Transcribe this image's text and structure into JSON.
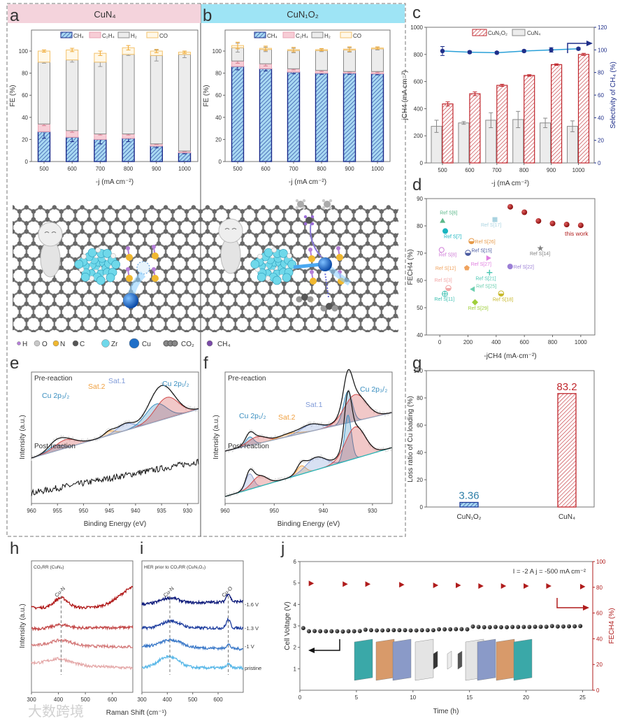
{
  "panels": {
    "a": "a",
    "b": "b",
    "c": "c",
    "d": "d",
    "e": "e",
    "f": "f",
    "g": "g",
    "h": "h",
    "i": "i",
    "j": "j"
  },
  "illustration": {
    "legend": [
      {
        "label": "H",
        "color": "#b57fd8"
      },
      {
        "label": "O",
        "color": "#c8c8c8"
      },
      {
        "label": "N",
        "color": "#f0b830"
      },
      {
        "label": "C",
        "color": "#555555"
      },
      {
        "label": "Zr",
        "color": "#6fd8ea"
      },
      {
        "label": "Cu",
        "color": "#1f6fc8"
      },
      {
        "label": "CO₂",
        "color": "#8a8a8a"
      },
      {
        "label": "CH₄",
        "color": "#7a4aa8"
      }
    ]
  },
  "watermark": "大数跨境",
  "chart_data": [
    {
      "panel": "a",
      "type": "bar",
      "stacked": true,
      "title": "CuN₄",
      "categories": [
        "500",
        "600",
        "700",
        "800",
        "900",
        "1000"
      ],
      "series": [
        {
          "name": "CH₄",
          "values": [
            27,
            22,
            20,
            21,
            14,
            8
          ],
          "errors": [
            6,
            4,
            4,
            3,
            1.5,
            1
          ],
          "color": "#1a2a8a"
        },
        {
          "name": "C₂H₄",
          "values": [
            7,
            6,
            5,
            4,
            2,
            1.5
          ],
          "errors": [
            1.5,
            1.5,
            1,
            1,
            0.5,
            0.5
          ],
          "color": "#f4b8c4"
        },
        {
          "name": "H₂",
          "values": [
            56,
            64,
            65,
            72,
            80,
            87.5
          ],
          "errors": [
            1,
            2,
            4,
            1,
            5,
            3
          ],
          "color": "#9a9a9a"
        },
        {
          "name": "CO",
          "values": [
            10,
            9,
            8,
            6,
            4,
            2
          ],
          "errors": [
            1,
            1.5,
            2,
            2,
            1.5,
            1
          ],
          "color": "#f3c26b"
        }
      ],
      "xlabel": "-j (mA cm⁻²)",
      "ylabel": "FE (%)",
      "yticks": [
        "0",
        "20",
        "40",
        "60",
        "80",
        "100"
      ],
      "ylim": [
        0,
        119
      ]
    },
    {
      "panel": "b",
      "type": "bar",
      "stacked": true,
      "title": "CuN₁O₂",
      "categories": [
        "500",
        "600",
        "700",
        "800",
        "900",
        "1000"
      ],
      "series": [
        {
          "name": "CH₄",
          "values": [
            86,
            84,
            81,
            80,
            80,
            79.5
          ],
          "errors": [
            3,
            2,
            1.5,
            1,
            1,
            1
          ],
          "color": "#1a2a8a"
        },
        {
          "name": "C₂H₄",
          "values": [
            5,
            4.5,
            3,
            2.5,
            1.5,
            2
          ],
          "errors": [
            2,
            2,
            1,
            1,
            0.5,
            1
          ],
          "color": "#f4b8c4"
        },
        {
          "name": "H₂",
          "values": [
            12,
            13,
            16.5,
            18,
            19.5,
            20.5
          ],
          "errors": [
            4,
            2,
            2,
            1,
            2,
            1
          ],
          "color": "#9a9a9a"
        },
        {
          "name": "CO",
          "values": [
            2,
            1,
            0.8,
            0.8,
            0.8,
            0.8
          ],
          "errors": [
            3,
            2,
            2,
            1,
            2,
            1
          ],
          "color": "#f3c26b"
        }
      ],
      "xlabel": "-j (mA cm⁻²)",
      "ylabel": "FE (%)",
      "yticks": [
        "0",
        "20",
        "40",
        "60",
        "80",
        "100"
      ],
      "ylim": [
        0,
        119
      ]
    },
    {
      "panel": "c",
      "type": "bar",
      "categories": [
        "500",
        "600",
        "700",
        "800",
        "900",
        "1000"
      ],
      "series": [
        {
          "name": "CuN₁O₂",
          "values": [
            435,
            510,
            572,
            645,
            725,
            800
          ],
          "errors": [
            15,
            14,
            8,
            6,
            6,
            8
          ],
          "color": "#c0272d"
        },
        {
          "name": "CuN₄",
          "values": [
            270,
            295,
            315,
            320,
            295,
            270
          ],
          "errors": [
            45,
            10,
            55,
            60,
            35,
            40
          ],
          "color": "#9a9a9a"
        }
      ],
      "line": {
        "name": "Selectivity of CH₄",
        "values": [
          99,
          98,
          97.5,
          99,
          100,
          101
        ],
        "errors": [
          4,
          1,
          1,
          1,
          2,
          1
        ],
        "color": "#1f2f8a"
      },
      "xlabel": "-j (mA cm⁻²)",
      "ylabel": "jCH4 (mA cm⁻²)",
      "y2label": "Selectivity of CH₄ (%)",
      "yticks": [
        "0",
        "200",
        "400",
        "600",
        "800",
        "1000"
      ],
      "ylim": [
        0,
        1000
      ],
      "y2ticks": [
        "0",
        "20",
        "40",
        "60",
        "80",
        "100",
        "120"
      ],
      "y2lim": [
        0,
        120
      ]
    },
    {
      "panel": "d",
      "type": "scatter",
      "xlabel": "-jCH4 (mA·cm⁻²)",
      "ylabel": "FECH4 (%)",
      "xticks": [
        "0",
        "200",
        "400",
        "600",
        "800",
        "1000"
      ],
      "yticks": [
        "40",
        "50",
        "60",
        "70",
        "80",
        "90"
      ],
      "xlim": [
        -95,
        1100
      ],
      "ylim": [
        40,
        90
      ],
      "points": [
        {
          "label": "Ref S[6]",
          "x": 20,
          "y": 81.9,
          "color": "#5cb88a",
          "marker": "triangle"
        },
        {
          "label": "Ref S[7]",
          "x": 39,
          "y": 78.1,
          "color": "#19b5c0",
          "marker": "circle"
        },
        {
          "label": "Ref S[8]",
          "x": 13,
          "y": 71.2,
          "color": "#d07fd8",
          "marker": "open-circle"
        },
        {
          "label": "Ref S[12]",
          "x": 192,
          "y": 64.6,
          "color": "#f0a35e",
          "marker": "pentagon"
        },
        {
          "label": "Ref S[3]",
          "x": 61,
          "y": 57.2,
          "color": "#f2a6a6",
          "marker": "half-circle"
        },
        {
          "label": "Ref S[11]",
          "x": 36,
          "y": 55.1,
          "color": "#3cbfb0",
          "marker": "crossed-circle"
        },
        {
          "label": "Ref S[25]",
          "x": 233,
          "y": 56.8,
          "color": "#6ccfb0",
          "marker": "left-triangle"
        },
        {
          "label": "Ref S[29]",
          "x": 250,
          "y": 52,
          "color": "#9fcf3a",
          "marker": "diamond"
        },
        {
          "label": "Ref S[21]",
          "x": 353,
          "y": 62.9,
          "color": "#4fc8b4",
          "marker": "plus"
        },
        {
          "label": "Ref S[18]",
          "x": 435,
          "y": 55.2,
          "color": "#c7b82a",
          "marker": "half-circle"
        },
        {
          "label": "Ref S[27]",
          "x": 345,
          "y": 68.2,
          "color": "#e07ee0",
          "marker": "right-triangle"
        },
        {
          "label": "Ref S[15]",
          "x": 200,
          "y": 70.1,
          "color": "#4a5aa0",
          "marker": "half-circle"
        },
        {
          "label": "Ref S[26]",
          "x": 225,
          "y": 74.4,
          "color": "#e69a4a",
          "marker": "half-circle"
        },
        {
          "label": "Ref S[17]",
          "x": 391,
          "y": 82.3,
          "color": "#a9d3e0",
          "marker": "square"
        },
        {
          "label": "Ref S[22]",
          "x": 499,
          "y": 65.1,
          "color": "#9b7fd6",
          "marker": "circle"
        },
        {
          "label": "Ref S[14]",
          "x": 713,
          "y": 71.8,
          "color": "#808080",
          "marker": "star"
        }
      ],
      "this_work": {
        "label": "this work",
        "x": [
          500,
          600,
          700,
          800,
          900,
          1000
        ],
        "y": [
          87,
          85,
          81.8,
          80.9,
          80.5,
          80.2
        ],
        "color": "#b01c1c"
      }
    },
    {
      "panel": "e",
      "type": "line",
      "xlabel": "Binding Energy (eV)",
      "ylabel": "Intensity (a.u.)",
      "xticks": [
        "960",
        "955",
        "950",
        "945",
        "940",
        "935",
        "930"
      ],
      "xlim": [
        960,
        927.9
      ],
      "traces": [
        {
          "name": "Pre-reaction",
          "baseline": [
            0,
            70
          ],
          "components": [
            {
              "c": 955.5,
              "h": 8,
              "w": 1.4,
              "color": "#3b8fc0"
            },
            {
              "c": 953.5,
              "h": 12,
              "w": 2,
              "color": "#d04848"
            },
            {
              "c": 945,
              "h": 6,
              "w": 1,
              "color": "#f0a040"
            },
            {
              "c": 942,
              "h": 10,
              "w": 1.5,
              "color": "#7f9ad8"
            },
            {
              "c": 936,
              "h": 25,
              "w": 2,
              "color": "#3b8fc0"
            },
            {
              "c": 934,
              "h": 30,
              "w": 2.2,
              "color": "#d04848"
            }
          ]
        },
        {
          "name": "Post-reaction",
          "baseline": [
            0,
            45
          ],
          "components": []
        }
      ],
      "annotations": [
        "Cu 2p₃/₂",
        "Sat.2",
        "Sat.1",
        "Cu 2p₁/₂"
      ]
    },
    {
      "panel": "f",
      "type": "line",
      "xlabel": "Binding Energy (eV)",
      "ylabel": "Intensity (a.u.)",
      "xticks": [
        "960",
        "950",
        "940",
        "930"
      ],
      "xlim": [
        960,
        926
      ],
      "traces": [
        {
          "name": "Pre-reaction",
          "baseline": [
            0,
            55
          ],
          "components": [
            {
              "c": 955,
              "h": 12,
              "w": 0.8,
              "color": "#3b8fc0"
            },
            {
              "c": 953.5,
              "h": 10,
              "w": 1.8,
              "color": "#d04848"
            },
            {
              "c": 947,
              "h": 4,
              "w": 2,
              "color": "#f0a040"
            },
            {
              "c": 942.5,
              "h": 10,
              "w": 2,
              "color": "#7f9ad8"
            },
            {
              "c": 935,
              "h": 45,
              "w": 0.9,
              "color": "#3b8fc0"
            },
            {
              "c": 933.5,
              "h": 38,
              "w": 2.2,
              "color": "#d04848"
            }
          ]
        },
        {
          "name": "Post-reaction",
          "baseline": [
            0,
            70
          ],
          "components": [
            {
              "c": 955,
              "h": 22,
              "w": 0.8,
              "color": "#8fa0d0"
            },
            {
              "c": 953,
              "h": 15,
              "w": 1.5,
              "color": "#d04848"
            },
            {
              "c": 944.5,
              "h": 12,
              "w": 0.9,
              "color": "#f0a040"
            },
            {
              "c": 941.5,
              "h": 18,
              "w": 2,
              "color": "#7f9ad8"
            },
            {
              "c": 935,
              "h": 65,
              "w": 0.7,
              "color": "#3b8fc0"
            },
            {
              "c": 933.5,
              "h": 45,
              "w": 2,
              "color": "#d04848"
            }
          ]
        }
      ],
      "annotations": [
        "Cu 2p₁/₂",
        "Sat.2",
        "Sat.1",
        "Cu 2p₃/₂"
      ]
    },
    {
      "panel": "g",
      "type": "bar",
      "categories": [
        "CuN₁O₂",
        "CuN₄"
      ],
      "values": [
        3.36,
        83.2
      ],
      "value_labels": [
        "3.36",
        "83.2"
      ],
      "colors": [
        "#2f7fa8",
        "#c0272d"
      ],
      "ylabel": "Loss ratio of Cu loading (%)",
      "yticks": [
        "0",
        "20",
        "40",
        "60",
        "80",
        "100"
      ],
      "ylim": [
        0,
        100
      ]
    },
    {
      "panel": "h",
      "type": "line",
      "title": "CO₂RR (CuN₄)",
      "xlabel": "Raman Shift (cm⁻¹)",
      "ylabel": "Intensity (a.u.)",
      "xticks": [
        "300",
        "400",
        "500",
        "600"
      ],
      "xlim": [
        300,
        676
      ],
      "annotations": [
        "Cu-N"
      ],
      "traces": [
        {
          "color": "#b01818",
          "peaks": [
            {
              "c": 410,
              "h": 14,
              "w": 25
            },
            {
              "c": 690,
              "h": 30,
              "w": 60
            }
          ],
          "slope": 0
        },
        {
          "color": "#c44a4a",
          "peaks": [
            {
              "c": 410,
              "h": 5,
              "w": 30
            }
          ],
          "slope": 0.005
        },
        {
          "color": "#d47a7a",
          "peaks": [
            {
              "c": 410,
              "h": 8,
              "w": 40
            }
          ],
          "slope": -0.005
        },
        {
          "color": "#e4a8a8",
          "peaks": [
            {
              "c": 405,
              "h": 8,
              "w": 40
            }
          ],
          "slope": -0.02
        }
      ]
    },
    {
      "panel": "i",
      "type": "line",
      "title": "HER prior to CO₂RR (CuN₁O₂)",
      "xlabel": "Raman Shift (cm⁻¹)",
      "xticks": [
        "300",
        "400",
        "500",
        "600"
      ],
      "xlim": [
        300,
        699
      ],
      "annotations": [
        "Cu-N",
        "Cu-O"
      ],
      "traces": [
        {
          "label": "-1.6 V",
          "color": "#0d1a7a",
          "peaks": [
            {
              "c": 410,
              "h": 8,
              "w": 35
            },
            {
              "c": 640,
              "h": 12,
              "w": 8
            }
          ],
          "slope": 0.01
        },
        {
          "label": "-1.3 V",
          "color": "#2140a0",
          "peaks": [
            {
              "c": 415,
              "h": 10,
              "w": 35
            },
            {
              "c": 640,
              "h": 12,
              "w": 8
            }
          ],
          "slope": 0
        },
        {
          "label": "-1 V",
          "color": "#3a78c8",
          "peaks": [
            {
              "c": 415,
              "h": 10,
              "w": 40
            },
            {
              "c": 640,
              "h": 6,
              "w": 8
            }
          ],
          "slope": -0.01
        },
        {
          "label": "pristine",
          "color": "#5ab8e8",
          "peaks": [
            {
              "c": 405,
              "h": 16,
              "w": 40
            },
            {
              "c": 640,
              "h": 5,
              "w": 8
            }
          ],
          "slope": 0
        }
      ]
    },
    {
      "panel": "j",
      "type": "scatter",
      "xlabel": "Time (h)",
      "ylabel": "Cell Voltage (V)",
      "y2label": "FECH4 (%)",
      "xticks": [
        "0",
        "5",
        "10",
        "15",
        "20",
        "25"
      ],
      "xlim": [
        0,
        25.9
      ],
      "yticks": [
        "1",
        "2",
        "3",
        "4",
        "5",
        "6"
      ],
      "ylim": [
        0,
        6
      ],
      "y2ticks": [
        "0",
        "20",
        "40",
        "60",
        "80",
        "100"
      ],
      "y2lim": [
        0,
        100
      ],
      "annotation": "I = -2 A   j = -500 mA cm⁻²",
      "voltage": {
        "time": [
          0.3,
          0.8,
          1.3,
          1.8,
          2.3,
          2.8,
          3.3,
          3.8,
          4.3,
          4.8,
          5.3,
          5.8,
          6.3,
          6.8,
          7.3,
          7.8,
          8.3,
          8.8,
          9.3,
          9.8,
          10.3,
          10.8,
          11.3,
          11.8,
          12.3,
          12.8,
          13.3,
          13.8,
          14.3,
          14.8,
          15.3,
          15.8,
          16.3,
          16.8,
          17.3,
          17.8,
          18.3,
          18.8,
          19.3,
          19.8,
          20.3,
          20.8,
          21.3,
          21.8,
          22.3,
          22.8,
          23.3,
          23.8,
          24.3,
          24.8
        ],
        "values": [
          2.9,
          2.75,
          2.76,
          2.75,
          2.75,
          2.75,
          2.75,
          2.74,
          2.75,
          2.75,
          2.76,
          2.82,
          2.8,
          2.79,
          2.79,
          2.8,
          2.8,
          2.8,
          2.8,
          2.79,
          2.79,
          2.8,
          2.8,
          2.8,
          2.84,
          2.84,
          2.84,
          2.85,
          2.85,
          2.84,
          2.97,
          2.95,
          2.94,
          2.94,
          2.95,
          2.94,
          2.94,
          2.95,
          2.95,
          2.95,
          2.95,
          2.96,
          2.96,
          2.96,
          2.99,
          2.97,
          2.97,
          2.98,
          2.98,
          2.99
        ],
        "color": "#111111"
      },
      "fe": {
        "time": [
          1,
          4,
          6,
          9,
          12,
          14,
          16,
          18,
          20,
          22,
          25
        ],
        "values": [
          83,
          82.5,
          82.5,
          82,
          81.5,
          81.5,
          81,
          81,
          81,
          81,
          80.5
        ],
        "color": "#b01c1c"
      }
    }
  ]
}
